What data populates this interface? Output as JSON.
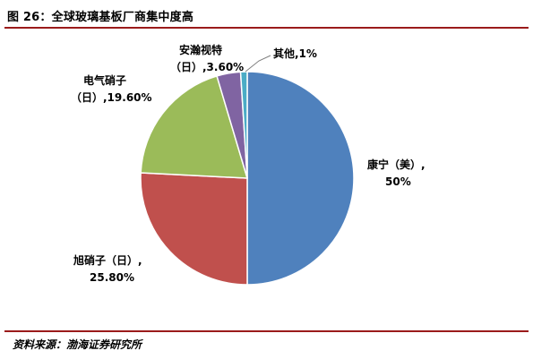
{
  "header": {
    "title": "图 26：全球玻璃基板厂商集中度高"
  },
  "footer": {
    "source": "资料来源：渤海证券研究所"
  },
  "chart_data": {
    "type": "pie",
    "title": "",
    "series": [
      {
        "name": "",
        "values": [
          50,
          25.8,
          19.6,
          3.6,
          1
        ]
      }
    ],
    "categories": [
      "康宁（美）",
      "旭硝子（日）",
      "电气硝子（日）",
      "安瀚视特（日）",
      "其他"
    ],
    "slices": [
      {
        "label_lines": [
          "康宁（美）,",
          "50%"
        ],
        "value": 50,
        "color": "#4f81bd"
      },
      {
        "label_lines": [
          "旭硝子（日）,",
          "25.80%"
        ],
        "value": 25.8,
        "color": "#c0504d"
      },
      {
        "label_lines": [
          "电气硝子",
          "（日）,19.60%"
        ],
        "value": 19.6,
        "color": "#9bbb59"
      },
      {
        "label_lines": [
          "安瀚视特",
          "（日）,3.60%"
        ],
        "value": 3.6,
        "color": "#8064a2"
      },
      {
        "label_lines": [
          "其他,1%"
        ],
        "value": 1,
        "color": "#4bacc6"
      }
    ],
    "start_angle_deg": 0,
    "direction": "clockwise",
    "legend": "none"
  }
}
